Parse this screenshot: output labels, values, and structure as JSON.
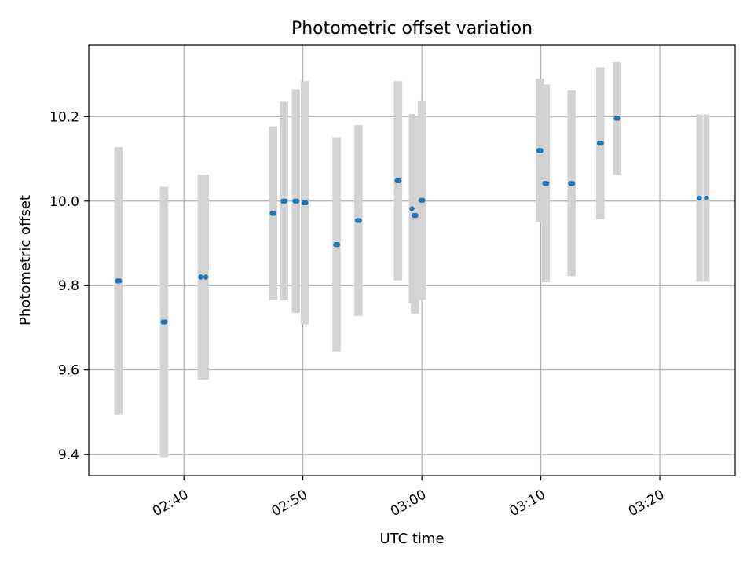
{
  "chart_data": {
    "type": "scatter",
    "title": "Photometric offset variation",
    "xlabel": "UTC time",
    "ylabel": "Photometric offset",
    "x_range": [
      "02:32:00",
      "03:26:20"
    ],
    "y_range": [
      9.35,
      10.37
    ],
    "grid": true,
    "x_ticks": [
      "02:40",
      "02:50",
      "03:00",
      "03:10",
      "03:20"
    ],
    "y_ticks": [
      "9.4",
      "9.6",
      "9.8",
      "10.0",
      "10.2"
    ],
    "y_tick_values": [
      9.4,
      9.6,
      9.8,
      10.0,
      10.2
    ],
    "colors": {
      "points": "#1f77b4",
      "errorbars": "#d3d3d3",
      "grid": "#b0b0b0"
    },
    "points": [
      {
        "x": "02:34:25",
        "y": 9.811,
        "err": 0.317
      },
      {
        "x": "02:34:35",
        "y": 9.811,
        "err": 0.317
      },
      {
        "x": "02:38:15",
        "y": 9.714,
        "err": 0.32
      },
      {
        "x": "02:38:25",
        "y": 9.714,
        "err": 0.32
      },
      {
        "x": "02:41:25",
        "y": 9.82,
        "err": 0.243
      },
      {
        "x": "02:41:50",
        "y": 9.82,
        "err": 0.243
      },
      {
        "x": "02:47:25",
        "y": 9.971,
        "err": 0.206
      },
      {
        "x": "02:47:35",
        "y": 9.971,
        "err": 0.206
      },
      {
        "x": "02:48:20",
        "y": 10.0,
        "err": 0.235
      },
      {
        "x": "02:48:30",
        "y": 10.0,
        "err": 0.235
      },
      {
        "x": "02:49:20",
        "y": 10.0,
        "err": 0.265
      },
      {
        "x": "02:49:30",
        "y": 10.0,
        "err": 0.265
      },
      {
        "x": "02:50:05",
        "y": 9.996,
        "err": 0.288
      },
      {
        "x": "02:50:15",
        "y": 9.996,
        "err": 0.288
      },
      {
        "x": "02:52:45",
        "y": 9.897,
        "err": 0.254
      },
      {
        "x": "02:52:55",
        "y": 9.897,
        "err": 0.254
      },
      {
        "x": "02:54:35",
        "y": 9.954,
        "err": 0.226
      },
      {
        "x": "02:54:45",
        "y": 9.954,
        "err": 0.226
      },
      {
        "x": "02:57:55",
        "y": 10.048,
        "err": 0.236
      },
      {
        "x": "02:58:05",
        "y": 10.048,
        "err": 0.236
      },
      {
        "x": "02:59:10",
        "y": 9.982,
        "err": 0.224
      },
      {
        "x": "02:59:20",
        "y": 9.966,
        "err": 0.232
      },
      {
        "x": "02:59:30",
        "y": 9.966,
        "err": 0.232
      },
      {
        "x": "02:59:55",
        "y": 10.002,
        "err": 0.236
      },
      {
        "x": "03:00:05",
        "y": 10.002,
        "err": 0.236
      },
      {
        "x": "03:09:50",
        "y": 10.12,
        "err": 0.17
      },
      {
        "x": "03:10:00",
        "y": 10.12,
        "err": 0.17
      },
      {
        "x": "03:10:20",
        "y": 10.042,
        "err": 0.234
      },
      {
        "x": "03:10:30",
        "y": 10.042,
        "err": 0.234
      },
      {
        "x": "03:12:30",
        "y": 10.042,
        "err": 0.22
      },
      {
        "x": "03:12:40",
        "y": 10.042,
        "err": 0.22
      },
      {
        "x": "03:14:55",
        "y": 10.137,
        "err": 0.18
      },
      {
        "x": "03:15:05",
        "y": 10.137,
        "err": 0.18
      },
      {
        "x": "03:16:20",
        "y": 10.196,
        "err": 0.133
      },
      {
        "x": "03:16:30",
        "y": 10.196,
        "err": 0.133
      },
      {
        "x": "03:23:20",
        "y": 10.007,
        "err": 0.198
      },
      {
        "x": "03:23:55",
        "y": 10.007,
        "err": 0.198
      }
    ]
  }
}
